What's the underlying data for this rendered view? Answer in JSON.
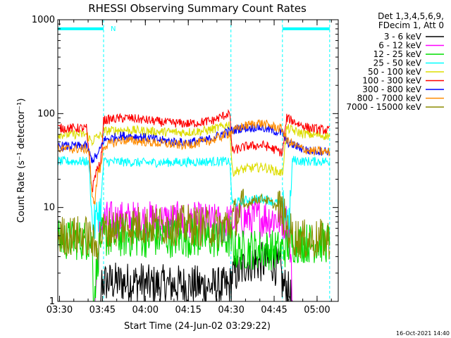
{
  "chart_data": {
    "type": "line",
    "title": "RHESSI Observing Summary Count Rates",
    "xlabel": "Start Time (24-Jun-02 03:29:22)",
    "ylabel": "Count Rate (s⁻¹ detector⁻¹)",
    "yscale": "log",
    "ylim": [
      1,
      1000
    ],
    "xlim_min": [
      0,
      98
    ],
    "xticks": [
      {
        "label": "03:30",
        "min": 0.6
      },
      {
        "label": "03:45",
        "min": 15.6
      },
      {
        "label": "04:00",
        "min": 30.6
      },
      {
        "label": "04:15",
        "min": 45.6
      },
      {
        "label": "04:30",
        "min": 60.6
      },
      {
        "label": "04:45",
        "min": 75.6
      },
      {
        "label": "05:00",
        "min": 90.6
      }
    ],
    "yticks": [
      {
        "label": "1",
        "value": 1
      },
      {
        "label": "10",
        "value": 10
      },
      {
        "label": "100",
        "value": 100
      },
      {
        "label": "1000",
        "value": 1000
      }
    ],
    "legend": {
      "header": [
        "Det 1,3,4,5,6,9,",
        "FDecim 1, Att 0"
      ],
      "entries": [
        "3 - 6 keV",
        "6 - 12 keV",
        "12 - 25 keV",
        "25 - 50 keV",
        "50 - 100 keV",
        "100 - 300 keV",
        "300 - 800 keV",
        "800 - 7000 keV",
        "7000 - 15000 keV"
      ]
    },
    "annotations": {
      "night_flag": "N",
      "date_stamp": "16-Oct-2021 14:40"
    },
    "flag_bar": {
      "value": 800,
      "spans_min": [
        [
          0,
          16
        ],
        [
          78.5,
          95
        ]
      ]
    },
    "night_lines_min": [
      16,
      60.5,
      78.5,
      95
    ],
    "series": [
      {
        "name": "3 - 6 keV",
        "color": "#000000",
        "points": [
          [
            13,
            1
          ],
          [
            15,
            1
          ],
          [
            15,
            1.6
          ],
          [
            30,
            1.6
          ],
          [
            30,
            1.5
          ],
          [
            46,
            1.5
          ],
          [
            60,
            1.4
          ],
          [
            61,
            1.9
          ],
          [
            64,
            2.1
          ],
          [
            66,
            2.6
          ],
          [
            75,
            2.6
          ],
          [
            78,
            2.1
          ],
          [
            78.5,
            1.5
          ],
          [
            80,
            1.4
          ],
          [
            82,
            1
          ],
          [
            95,
            1
          ]
        ]
      },
      {
        "name": "6 - 12 keV",
        "color": "#ff00ff",
        "points": [
          [
            13,
            1
          ],
          [
            14,
            3
          ],
          [
            15,
            6.5
          ],
          [
            16,
            7.2
          ],
          [
            30,
            7.2
          ],
          [
            46,
            7
          ],
          [
            58,
            6.6
          ],
          [
            60,
            6.7
          ],
          [
            64,
            7.5
          ],
          [
            72,
            7.8
          ],
          [
            78,
            7.6
          ],
          [
            80,
            7
          ],
          [
            81,
            5
          ],
          [
            82,
            1
          ],
          [
            95,
            1
          ]
        ]
      },
      {
        "name": "12 - 25 keV",
        "color": "#00dd00",
        "points": [
          [
            0,
            4.5
          ],
          [
            10,
            4.5
          ],
          [
            12,
            4.2
          ],
          [
            12.5,
            1
          ],
          [
            14,
            3
          ],
          [
            15,
            4.8
          ],
          [
            30,
            4.8
          ],
          [
            46,
            4.8
          ],
          [
            60,
            4.6
          ],
          [
            62,
            3.5
          ],
          [
            70,
            3.6
          ],
          [
            78,
            3.5
          ],
          [
            80,
            3.8
          ],
          [
            82,
            4.2
          ],
          [
            95,
            4.2
          ]
        ]
      },
      {
        "name": "25 - 50 keV",
        "color": "#00ffff",
        "points": [
          [
            0,
            31
          ],
          [
            10,
            31
          ],
          [
            11,
            28
          ],
          [
            12,
            6.5
          ],
          [
            13,
            6.5
          ],
          [
            14,
            9
          ],
          [
            15,
            9.5
          ],
          [
            16,
            31
          ],
          [
            30,
            30
          ],
          [
            46,
            30.5
          ],
          [
            56,
            31
          ],
          [
            60,
            31
          ],
          [
            61,
            11
          ],
          [
            66,
            12
          ],
          [
            72,
            12.5
          ],
          [
            77,
            11
          ],
          [
            78.5,
            10.5
          ],
          [
            79,
            9
          ],
          [
            81,
            7
          ],
          [
            82,
            32
          ],
          [
            86,
            31
          ],
          [
            95,
            31
          ]
        ]
      },
      {
        "name": "50 - 100 keV",
        "color": "#dddd00",
        "points": [
          [
            0,
            60
          ],
          [
            10,
            60
          ],
          [
            12,
            50
          ],
          [
            13,
            55
          ],
          [
            15,
            58
          ],
          [
            16,
            65
          ],
          [
            22,
            67
          ],
          [
            28,
            66
          ],
          [
            36,
            64
          ],
          [
            44,
            63
          ],
          [
            52,
            66
          ],
          [
            57,
            72
          ],
          [
            60,
            78
          ],
          [
            61,
            24
          ],
          [
            66,
            26
          ],
          [
            72,
            27
          ],
          [
            77,
            24
          ],
          [
            78.5,
            23
          ],
          [
            80,
            70
          ],
          [
            84,
            63
          ],
          [
            88,
            60
          ],
          [
            95,
            58
          ]
        ]
      },
      {
        "name": "100 - 300 keV",
        "color": "#ff0000",
        "points": [
          [
            0,
            70
          ],
          [
            10,
            70
          ],
          [
            11,
            32
          ],
          [
            12,
            15
          ],
          [
            13,
            22
          ],
          [
            14,
            27
          ],
          [
            15,
            28
          ],
          [
            16,
            85
          ],
          [
            20,
            88
          ],
          [
            24,
            90
          ],
          [
            30,
            86
          ],
          [
            38,
            80
          ],
          [
            46,
            78
          ],
          [
            54,
            84
          ],
          [
            58,
            95
          ],
          [
            60,
            102
          ],
          [
            61,
            40
          ],
          [
            66,
            45
          ],
          [
            72,
            46
          ],
          [
            77,
            40
          ],
          [
            78.5,
            38
          ],
          [
            80,
            90
          ],
          [
            84,
            78
          ],
          [
            88,
            70
          ],
          [
            95,
            66
          ]
        ]
      },
      {
        "name": "300 - 800 keV",
        "color": "#0000ff",
        "points": [
          [
            0,
            45
          ],
          [
            10,
            45
          ],
          [
            11,
            38
          ],
          [
            12,
            32
          ],
          [
            14,
            36
          ],
          [
            16,
            52
          ],
          [
            22,
            58
          ],
          [
            28,
            57
          ],
          [
            36,
            52
          ],
          [
            44,
            49
          ],
          [
            52,
            52
          ],
          [
            56,
            58
          ],
          [
            60,
            65
          ],
          [
            64,
            70
          ],
          [
            70,
            72
          ],
          [
            76,
            65
          ],
          [
            78.5,
            62
          ],
          [
            80,
            50
          ],
          [
            84,
            44
          ],
          [
            88,
            40
          ],
          [
            95,
            40
          ]
        ]
      },
      {
        "name": "800 - 7000 keV",
        "color": "#ff8c00",
        "points": [
          [
            0,
            42
          ],
          [
            10,
            42
          ],
          [
            11,
            40
          ],
          [
            12,
            12
          ],
          [
            13,
            12
          ],
          [
            14,
            24
          ],
          [
            15,
            26
          ],
          [
            16,
            45
          ],
          [
            22,
            52
          ],
          [
            28,
            51
          ],
          [
            36,
            48
          ],
          [
            44,
            46
          ],
          [
            52,
            50
          ],
          [
            56,
            55
          ],
          [
            60,
            62
          ],
          [
            64,
            72
          ],
          [
            70,
            80
          ],
          [
            76,
            72
          ],
          [
            78.5,
            68
          ],
          [
            80,
            52
          ],
          [
            84,
            44
          ],
          [
            88,
            40
          ],
          [
            95,
            39
          ]
        ]
      },
      {
        "name": "7000 - 15000 keV",
        "color": "#8b8b00",
        "points": [
          [
            0,
            5
          ],
          [
            10,
            5
          ],
          [
            12,
            4.5
          ],
          [
            13,
            3.5
          ],
          [
            14,
            4.6
          ],
          [
            16,
            5.6
          ],
          [
            22,
            6.3
          ],
          [
            30,
            6.5
          ],
          [
            40,
            6.4
          ],
          [
            46,
            6.5
          ],
          [
            52,
            6.2
          ],
          [
            56,
            6
          ],
          [
            60,
            6.8
          ],
          [
            64,
            9.5
          ],
          [
            68,
            12
          ],
          [
            72,
            12.5
          ],
          [
            76,
            10.5
          ],
          [
            78,
            9.5
          ],
          [
            80,
            6.5
          ],
          [
            82,
            5
          ],
          [
            86,
            4.5
          ],
          [
            95,
            4.6
          ]
        ]
      }
    ]
  }
}
